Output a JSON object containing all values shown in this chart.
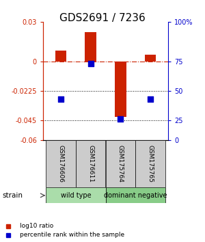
{
  "title": "GDS2691 / 7236",
  "samples": [
    "GSM176606",
    "GSM176611",
    "GSM175764",
    "GSM175765"
  ],
  "log10_ratio": [
    0.008,
    0.022,
    -0.042,
    0.005
  ],
  "percentile_rank": [
    35,
    65,
    18,
    35
  ],
  "ylim": [
    -0.06,
    0.03
  ],
  "yticks_left": [
    0.03,
    0,
    -0.0225,
    -0.045,
    -0.06
  ],
  "yticks_right_vals": [
    100,
    75,
    50,
    25,
    0
  ],
  "yticks_right_pos": [
    0.03,
    0.0,
    -0.0225,
    -0.045,
    -0.06
  ],
  "bar_color": "#cc2200",
  "dot_color": "#0000cc",
  "hline_y": 0.0,
  "dotted_lines": [
    -0.0225,
    -0.045
  ],
  "bar_width": 0.38,
  "dot_size": 28,
  "title_fontsize": 11,
  "tick_fontsize": 7,
  "label_fontsize": 7.5,
  "group_label_fontsize": 7,
  "sample_fontsize": 6.5,
  "right_axis_color": "#0000cc",
  "left_axis_color": "#cc2200",
  "background_color": "#ffffff",
  "plot_bg_color": "#ffffff",
  "strain_label": "strain",
  "arrow_color": "#555555",
  "group_gray": "#cccccc",
  "group_green_light": "#aaddaa",
  "group_green_darker": "#88cc88"
}
